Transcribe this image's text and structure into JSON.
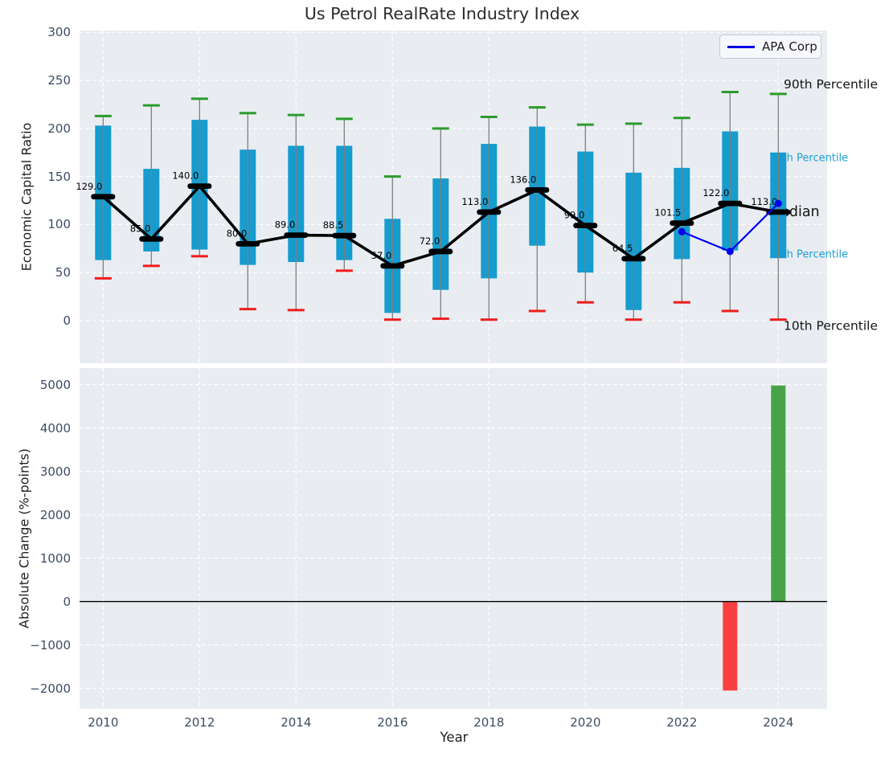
{
  "title": "Us Petrol RealRate Industry Index",
  "legend": {
    "label": "APA Corp"
  },
  "colors": {
    "plot_bg": "#e9edf2",
    "gridline": "#ffffff",
    "tick_label": "#3d4c63",
    "text": "#141414",
    "box_fill": "#169cce",
    "whisker": "#7e7e7e",
    "cap_high": "#2b9c2b",
    "cap_low": "#ee1c1c",
    "median": "#000000",
    "apa_line": "#0000ee",
    "bar_positive": "#46a346",
    "bar_negative": "#f84040",
    "percentile_label": "#1a9fd4"
  },
  "chart_data": [
    {
      "type": "box-whisker-with-median-line",
      "title": "Us Petrol RealRate Industry Index",
      "ylabel": "Economic Capital Ratio",
      "ylim": [
        -45,
        302
      ],
      "yticks": [
        0,
        50,
        100,
        150,
        200,
        250,
        300
      ],
      "xticks": [
        2010,
        2012,
        2014,
        2016,
        2018,
        2020,
        2022,
        2024
      ],
      "grid": "white-dashed",
      "legend_position": "upper right",
      "boxes": [
        {
          "year": 2010,
          "p10": 44,
          "p25": 63,
          "median": 129,
          "p75": 203,
          "p90": 213,
          "label": "129.0"
        },
        {
          "year": 2011,
          "p10": 57,
          "p25": 72,
          "median": 85,
          "p75": 158,
          "p90": 224,
          "label": "85.0"
        },
        {
          "year": 2012,
          "p10": 67,
          "p25": 74,
          "median": 140,
          "p75": 209,
          "p90": 231,
          "label": "140.0"
        },
        {
          "year": 2013,
          "p10": 12,
          "p25": 58,
          "median": 80,
          "p75": 178,
          "p90": 216,
          "label": "80.0"
        },
        {
          "year": 2014,
          "p10": 11,
          "p25": 61,
          "median": 89,
          "p75": 182,
          "p90": 214,
          "label": "89.0"
        },
        {
          "year": 2015,
          "p10": 52,
          "p25": 63,
          "median": 88.5,
          "p75": 182,
          "p90": 210,
          "label": "88.5"
        },
        {
          "year": 2016,
          "p10": 1,
          "p25": 8,
          "median": 57,
          "p75": 106,
          "p90": 150,
          "label": "57.0"
        },
        {
          "year": 2017,
          "p10": 2,
          "p25": 32,
          "median": 72,
          "p75": 148,
          "p90": 200,
          "label": "72.0"
        },
        {
          "year": 2018,
          "p10": 1,
          "p25": 44,
          "median": 113,
          "p75": 184,
          "p90": 212,
          "label": "113.0"
        },
        {
          "year": 2019,
          "p10": 10,
          "p25": 78,
          "median": 136,
          "p75": 202,
          "p90": 222,
          "label": "136.0"
        },
        {
          "year": 2020,
          "p10": 19,
          "p25": 50,
          "median": 99,
          "p75": 176,
          "p90": 204,
          "label": "99.0"
        },
        {
          "year": 2021,
          "p10": 1,
          "p25": 11,
          "median": 64.5,
          "p75": 154,
          "p90": 205,
          "label": "64.5"
        },
        {
          "year": 2022,
          "p10": 19,
          "p25": 64,
          "median": 101.5,
          "p75": 159,
          "p90": 211,
          "label": "101.5"
        },
        {
          "year": 2023,
          "p10": 10,
          "p25": 73,
          "median": 122,
          "p75": 197,
          "p90": 238,
          "label": "122.0"
        },
        {
          "year": 2024,
          "p10": 1,
          "p25": 65,
          "median": 113,
          "p75": 175,
          "p90": 236,
          "label": "113.0"
        }
      ],
      "overlay_series": {
        "name": "APA Corp",
        "points": [
          {
            "year": 2022,
            "value": 92.5
          },
          {
            "year": 2023,
            "value": 72
          },
          {
            "year": 2024,
            "value": 122
          }
        ]
      },
      "right_labels": [
        "90th Percentile",
        "75th Percentile",
        "Median",
        "25th Percentile",
        "10th Percentile"
      ]
    },
    {
      "type": "bar",
      "ylabel": "Absolute Change (%-points)",
      "xlabel": "Year",
      "ylim": [
        -2480,
        5360
      ],
      "yticks": [
        {
          "value": -2000,
          "label": "−2000"
        },
        {
          "value": -1000,
          "label": "−1000"
        },
        {
          "value": 0,
          "label": "0"
        },
        {
          "value": 1000,
          "label": "1000"
        },
        {
          "value": 2000,
          "label": "2000"
        },
        {
          "value": 3000,
          "label": "3000"
        },
        {
          "value": 4000,
          "label": "4000"
        },
        {
          "value": 5000,
          "label": "5000"
        }
      ],
      "xticks": [
        2010,
        2012,
        2014,
        2016,
        2018,
        2020,
        2022,
        2024
      ],
      "zero_line": true,
      "bars": [
        {
          "year": 2023,
          "value": -2050,
          "color_key": "bar_negative"
        },
        {
          "year": 2024,
          "value": 4980,
          "color_key": "bar_positive"
        }
      ]
    }
  ]
}
